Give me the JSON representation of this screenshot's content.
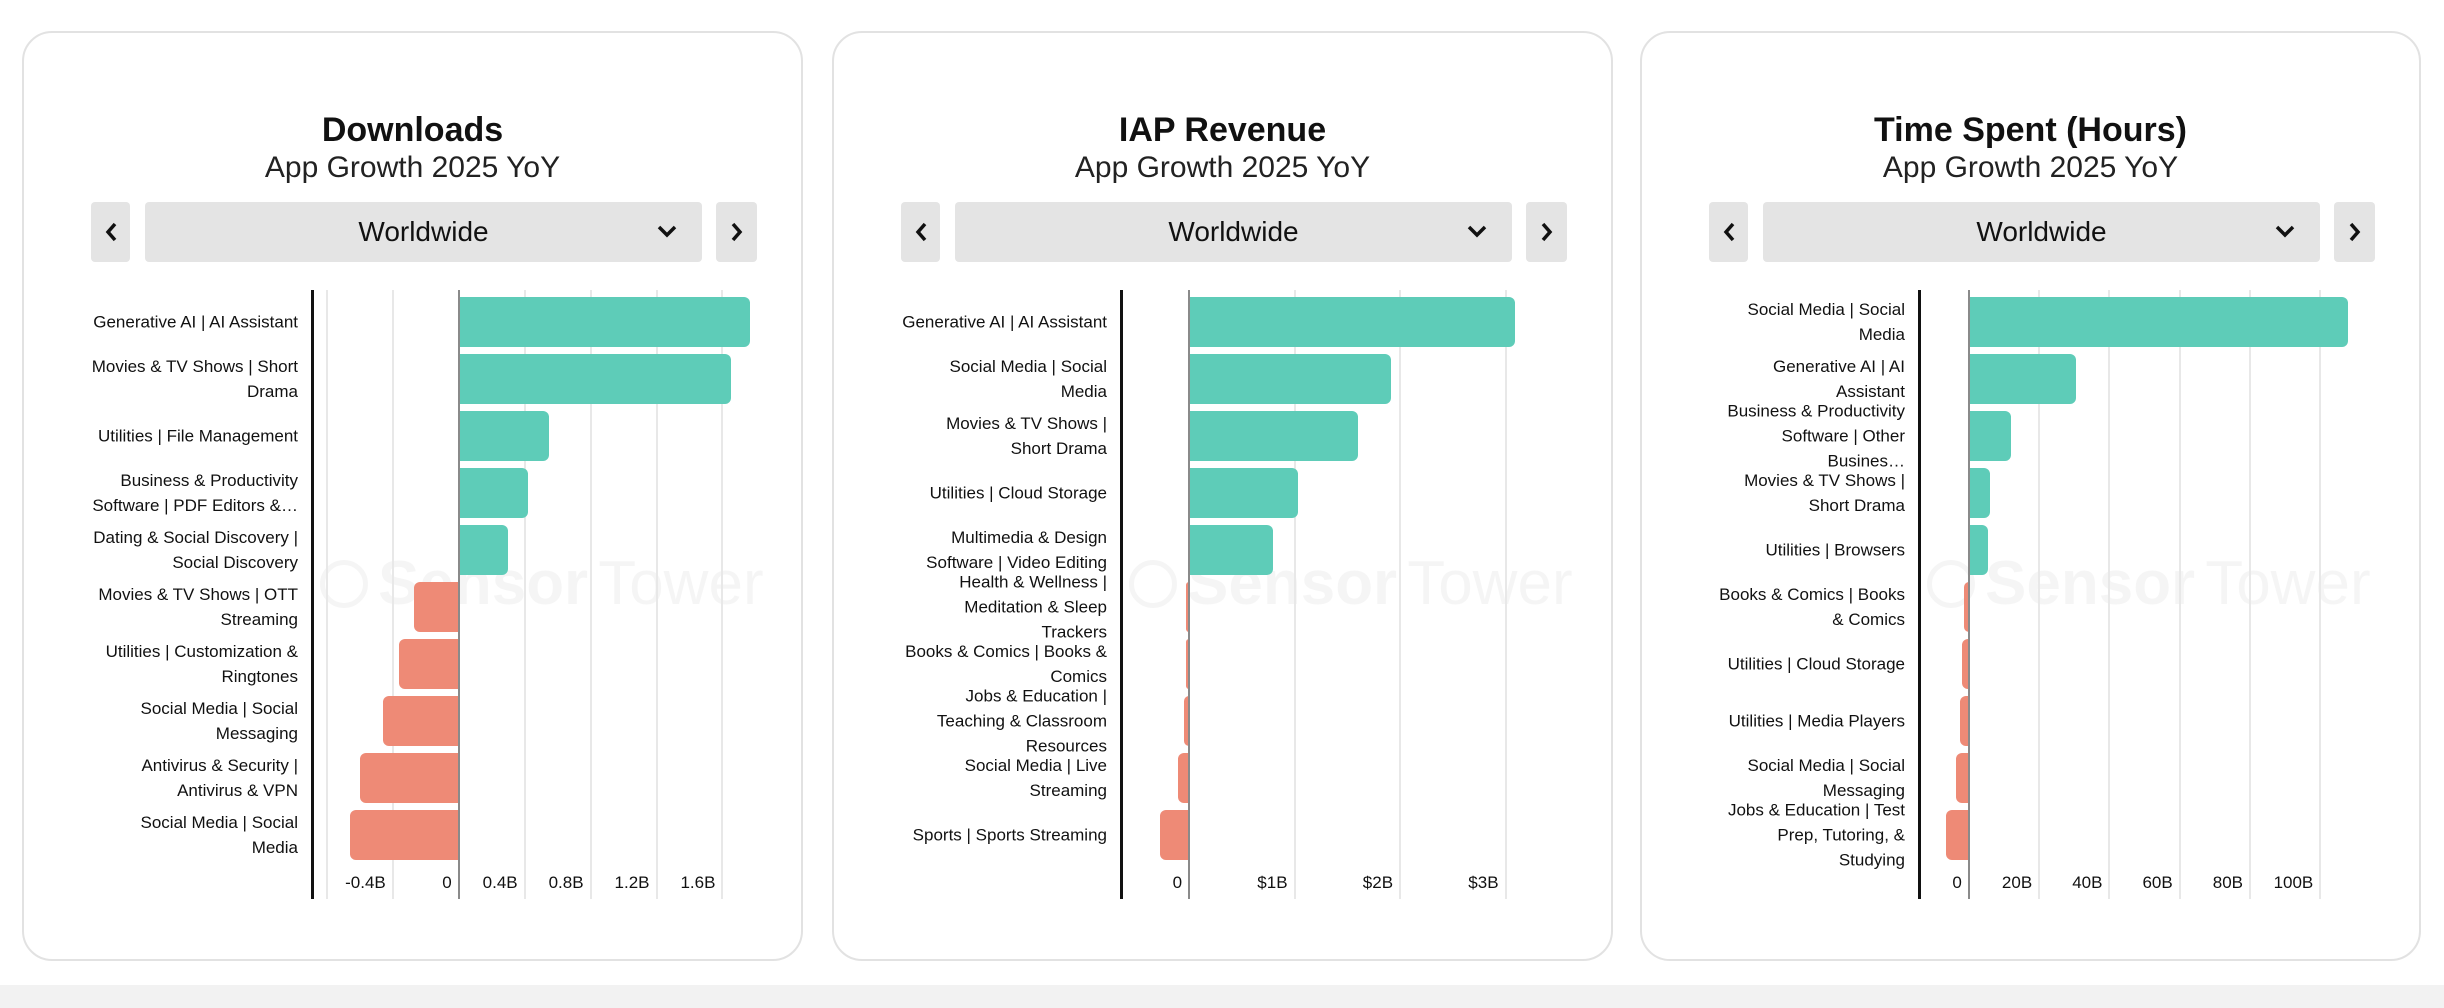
{
  "controls": [
    {
      "region": "Worldwide"
    },
    {
      "region": "Worldwide"
    },
    {
      "region": "Worldwide"
    }
  ],
  "watermark": {
    "brand_bold": "Sensor",
    "brand_light": "Tower"
  },
  "colors": {
    "positive": "#5ECCB8",
    "negative": "#EE8A76"
  },
  "chart_data": [
    {
      "type": "bar",
      "orientation": "horizontal",
      "title": "Downloads",
      "subtitle": "App Growth 2025 YoY",
      "xlabel": "",
      "ylabel": "",
      "unit": "B",
      "categories": [
        "Generative AI | AI Assistant",
        "Movies & TV Shows | Short Drama",
        "Utilities | File Management",
        "Business & Productivity Software | PDF Editors &…",
        "Dating & Social Discovery | Social Discovery",
        "Movies & TV Shows | OTT Streaming",
        "Utilities | Customization & Ringtones",
        "Social Media | Social Messaging",
        "Antivirus & Security | Antivirus & VPN",
        "Social Media | Social Media"
      ],
      "values": [
        1.77,
        1.65,
        0.55,
        0.42,
        0.3,
        -0.27,
        -0.36,
        -0.46,
        -0.6,
        -0.66
      ],
      "xlim": [
        -0.89,
        1.84
      ],
      "gridlines": [
        -0.8,
        -0.4,
        0.4,
        0.8,
        1.2,
        1.6
      ],
      "ticks": [
        -0.4,
        0,
        0.4,
        0.8,
        1.2,
        1.6
      ],
      "tick_labels": [
        "-0.4B",
        "0",
        "0.4B",
        "0.8B",
        "1.2B",
        "1.6B"
      ],
      "grid": true
    },
    {
      "type": "bar",
      "orientation": "horizontal",
      "title": "IAP Revenue",
      "subtitle": "App Growth 2025 YoY",
      "xlabel": "",
      "ylabel": "",
      "unit": "$B",
      "categories": [
        "Generative AI | AI Assistant",
        "Social Media | Social Media",
        "Movies & TV Shows | Short Drama",
        "Utilities | Cloud Storage",
        "Multimedia & Design Software | Video Editing",
        "Health & Wellness | Meditation & Sleep Trackers",
        "Books & Comics | Books & Comics",
        "Jobs & Education | Teaching & Classroom Resources",
        "Social Media | Live Streaming",
        "Sports | Sports Streaming"
      ],
      "values": [
        3.09,
        1.91,
        1.6,
        1.03,
        0.8,
        -0.025,
        -0.025,
        -0.045,
        -0.1,
        -0.28
      ],
      "xlim": [
        -0.645,
        3.63
      ],
      "gridlines": [
        1,
        2,
        3
      ],
      "ticks": [
        0,
        1,
        2,
        3
      ],
      "tick_labels": [
        "0",
        "$1B",
        "$2B",
        "$3B"
      ],
      "grid": true
    },
    {
      "type": "bar",
      "orientation": "horizontal",
      "title": "Time Spent (Hours)",
      "subtitle": "App Growth 2025 YoY",
      "xlabel": "",
      "ylabel": "",
      "unit": "B hours",
      "categories": [
        "Social Media | Social Media",
        "Generative AI | AI Assistant",
        "Business & Productivity Software | Other Busines…",
        "Movies & TV Shows | Short Drama",
        "Utilities | Browsers",
        "Books & Comics | Books & Comics",
        "Utilities | Cloud Storage",
        "Utilities | Media Players",
        "Social Media | Social Messaging",
        "Jobs & Education | Test Prep, Tutoring, & Studying"
      ],
      "values": [
        108,
        30.4,
        12.0,
        5.9,
        5.5,
        -1.3,
        -1.9,
        -2.6,
        -3.8,
        -6.5
      ],
      "xlim": [
        -14.2,
        117
      ],
      "gridlines": [
        20,
        40,
        60,
        80,
        100
      ],
      "ticks": [
        0,
        20,
        40,
        60,
        80,
        100
      ],
      "tick_labels": [
        "0",
        "20B",
        "40B",
        "60B",
        "80B",
        "100B"
      ],
      "grid": true
    }
  ]
}
